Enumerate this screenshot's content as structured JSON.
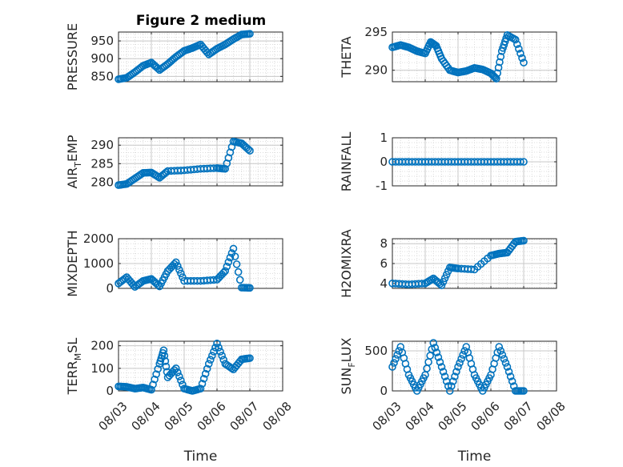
{
  "figure": {
    "title": "Figure 2 medium"
  },
  "colors": {
    "marker": "#0072BD",
    "grid": "#c8c8c8",
    "axis": "#262626"
  },
  "chart_data": [
    {
      "type": "scatter",
      "title": "Figure 2 medium",
      "ylabel": "PRESSURE",
      "xlabel": "",
      "ylim": [
        835,
        975
      ],
      "yticks": [
        850,
        900,
        950
      ],
      "ytick_labels": [
        "850",
        "900",
        "950"
      ],
      "xlim": [
        "08/03",
        "08/08"
      ],
      "xticks": [
        "08/03",
        "08/04",
        "08/05",
        "08/06",
        "08/07",
        "08/08"
      ],
      "grid": true,
      "x": [
        "08/03 00:00",
        "08/03 06:00",
        "08/03 12:00",
        "08/03 18:00",
        "08/04 00:00",
        "08/04 06:00",
        "08/04 12:00",
        "08/04 18:00",
        "08/05 00:00",
        "08/05 06:00",
        "08/05 12:00",
        "08/05 18:00",
        "08/06 00:00",
        "08/06 06:00",
        "08/06 12:00",
        "08/06 18:00",
        "08/07 00:00"
      ],
      "y": [
        842,
        846,
        862,
        880,
        889,
        868,
        885,
        905,
        922,
        930,
        940,
        912,
        928,
        940,
        955,
        968,
        970
      ]
    },
    {
      "type": "scatter",
      "ylabel": "THETA",
      "xlabel": "",
      "ylim": [
        288.5,
        295
      ],
      "yticks": [
        290,
        295
      ],
      "ytick_labels": [
        "290",
        "295"
      ],
      "xlim": [
        "08/03",
        "08/08"
      ],
      "xticks": [
        "08/03",
        "08/04",
        "08/05",
        "08/06",
        "08/07",
        "08/08"
      ],
      "grid": true,
      "x": [
        "08/03 00:00",
        "08/03 06:00",
        "08/03 12:00",
        "08/03 18:00",
        "08/04 00:00",
        "08/04 04:00",
        "08/04 08:00",
        "08/04 12:00",
        "08/04 18:00",
        "08/05 00:00",
        "08/05 06:00",
        "08/05 12:00",
        "08/05 18:00",
        "08/06 00:00",
        "08/06 04:00",
        "08/06 08:00",
        "08/06 12:00",
        "08/06 18:00",
        "08/07 00:00"
      ],
      "y": [
        293.0,
        293.3,
        293.0,
        292.5,
        292.2,
        293.7,
        293.2,
        291.5,
        290.0,
        289.7,
        289.9,
        290.3,
        290.1,
        289.6,
        288.9,
        292.5,
        294.6,
        294.0,
        291.0
      ]
    },
    {
      "type": "scatter",
      "ylabel": "AIR_TEMP",
      "xlabel": "",
      "ylim": [
        279,
        292
      ],
      "yticks": [
        280,
        285,
        290
      ],
      "ytick_labels": [
        "280",
        "285",
        "290"
      ],
      "xlim": [
        "08/03",
        "08/08"
      ],
      "xticks": [
        "08/03",
        "08/04",
        "08/05",
        "08/06",
        "08/07",
        "08/08"
      ],
      "grid": true,
      "x": [
        "08/03 00:00",
        "08/03 06:00",
        "08/03 12:00",
        "08/03 18:00",
        "08/04 00:00",
        "08/04 06:00",
        "08/04 12:00",
        "08/05 00:00",
        "08/05 12:00",
        "08/06 00:00",
        "08/06 06:00",
        "08/06 12:00",
        "08/06 18:00",
        "08/07 00:00"
      ],
      "y": [
        279.2,
        279.5,
        281.0,
        282.5,
        282.6,
        281.2,
        283.0,
        283.2,
        283.6,
        283.8,
        283.6,
        291.0,
        290.5,
        288.5
      ]
    },
    {
      "type": "scatter",
      "ylabel": "RAINFALL",
      "xlabel": "",
      "ylim": [
        -1,
        1
      ],
      "yticks": [
        -1,
        0,
        1
      ],
      "ytick_labels": [
        "-1",
        "0",
        "1"
      ],
      "xlim": [
        "08/03",
        "08/08"
      ],
      "xticks": [
        "08/03",
        "08/04",
        "08/05",
        "08/06",
        "08/07",
        "08/08"
      ],
      "grid": true,
      "x": [
        "08/03 00:00",
        "08/03 12:00",
        "08/04 00:00",
        "08/04 12:00",
        "08/05 00:00",
        "08/05 12:00",
        "08/06 00:00",
        "08/06 12:00",
        "08/07 00:00"
      ],
      "y": [
        0,
        0,
        0,
        0,
        0,
        0,
        0,
        0,
        0
      ]
    },
    {
      "type": "scatter",
      "ylabel": "MIXDEPTH",
      "xlabel": "",
      "ylim": [
        0,
        2000
      ],
      "yticks": [
        0,
        1000,
        2000
      ],
      "ytick_labels": [
        "0",
        "1000",
        "2000"
      ],
      "xlim": [
        "08/03",
        "08/08"
      ],
      "xticks": [
        "08/03",
        "08/04",
        "08/05",
        "08/06",
        "08/07",
        "08/08"
      ],
      "grid": true,
      "x": [
        "08/03 00:00",
        "08/03 06:00",
        "08/03 12:00",
        "08/03 18:00",
        "08/04 00:00",
        "08/04 06:00",
        "08/04 12:00",
        "08/04 18:00",
        "08/05 00:00",
        "08/05 12:00",
        "08/06 00:00",
        "08/06 06:00",
        "08/06 12:00",
        "08/06 18:00",
        "08/07 00:00"
      ],
      "y": [
        200,
        450,
        60,
        300,
        380,
        80,
        700,
        1050,
        300,
        300,
        350,
        700,
        1600,
        30,
        20
      ]
    },
    {
      "type": "scatter",
      "ylabel": "H2OMIXRA",
      "xlabel": "",
      "ylim": [
        3.5,
        8.5
      ],
      "yticks": [
        4,
        6,
        8
      ],
      "ytick_labels": [
        "4",
        "6",
        "8"
      ],
      "xlim": [
        "08/03",
        "08/08"
      ],
      "xticks": [
        "08/03",
        "08/04",
        "08/05",
        "08/06",
        "08/07",
        "08/08"
      ],
      "grid": true,
      "x": [
        "08/03 00:00",
        "08/03 12:00",
        "08/04 00:00",
        "08/04 06:00",
        "08/04 12:00",
        "08/04 18:00",
        "08/05 00:00",
        "08/05 12:00",
        "08/06 00:00",
        "08/06 06:00",
        "08/06 12:00",
        "08/06 18:00",
        "08/07 00:00"
      ],
      "y": [
        4.0,
        3.9,
        4.0,
        4.5,
        3.8,
        5.6,
        5.5,
        5.4,
        6.8,
        7.0,
        7.1,
        8.2,
        8.3
      ]
    },
    {
      "type": "scatter",
      "ylabel": "TERR_MSL",
      "xlabel": "Time",
      "ylim": [
        0,
        220
      ],
      "yticks": [
        0,
        100,
        200
      ],
      "ytick_labels": [
        "0",
        "100",
        "200"
      ],
      "xlim": [
        "08/03",
        "08/08"
      ],
      "xticks": [
        "08/03",
        "08/04",
        "08/05",
        "08/06",
        "08/07",
        "08/08"
      ],
      "xtick_labels": [
        "08/03",
        "08/04",
        "08/05",
        "08/06",
        "08/07",
        "08/08"
      ],
      "grid": true,
      "x": [
        "08/03 00:00",
        "08/03 06:00",
        "08/03 12:00",
        "08/03 18:00",
        "08/04 00:00",
        "08/04 06:00",
        "08/04 09:00",
        "08/04 12:00",
        "08/04 18:00",
        "08/05 00:00",
        "08/05 06:00",
        "08/05 12:00",
        "08/05 18:00",
        "08/06 00:00",
        "08/06 06:00",
        "08/06 12:00",
        "08/06 18:00",
        "08/07 00:00"
      ],
      "y": [
        20,
        18,
        10,
        15,
        5,
        120,
        180,
        60,
        100,
        10,
        0,
        10,
        120,
        210,
        120,
        95,
        140,
        145
      ]
    },
    {
      "type": "scatter",
      "ylabel": "SUN_FLUX",
      "xlabel": "Time",
      "ylim": [
        0,
        620
      ],
      "yticks": [
        0,
        500
      ],
      "ytick_labels": [
        "0",
        "500"
      ],
      "xlim": [
        "08/03",
        "08/08"
      ],
      "xticks": [
        "08/03",
        "08/04",
        "08/05",
        "08/06",
        "08/07",
        "08/08"
      ],
      "xtick_labels": [
        "08/03",
        "08/04",
        "08/05",
        "08/06",
        "08/07",
        "08/08"
      ],
      "grid": true,
      "x": [
        "08/03 00:00",
        "08/03 06:00",
        "08/03 12:00",
        "08/03 18:00",
        "08/04 00:00",
        "08/04 06:00",
        "08/04 12:00",
        "08/04 18:00",
        "08/05 00:00",
        "08/05 06:00",
        "08/05 12:00",
        "08/05 18:00",
        "08/06 00:00",
        "08/06 06:00",
        "08/06 12:00",
        "08/06 18:00",
        "08/07 00:00"
      ],
      "y": [
        300,
        550,
        200,
        0,
        200,
        600,
        300,
        0,
        300,
        550,
        200,
        0,
        200,
        550,
        300,
        0,
        0
      ]
    }
  ]
}
